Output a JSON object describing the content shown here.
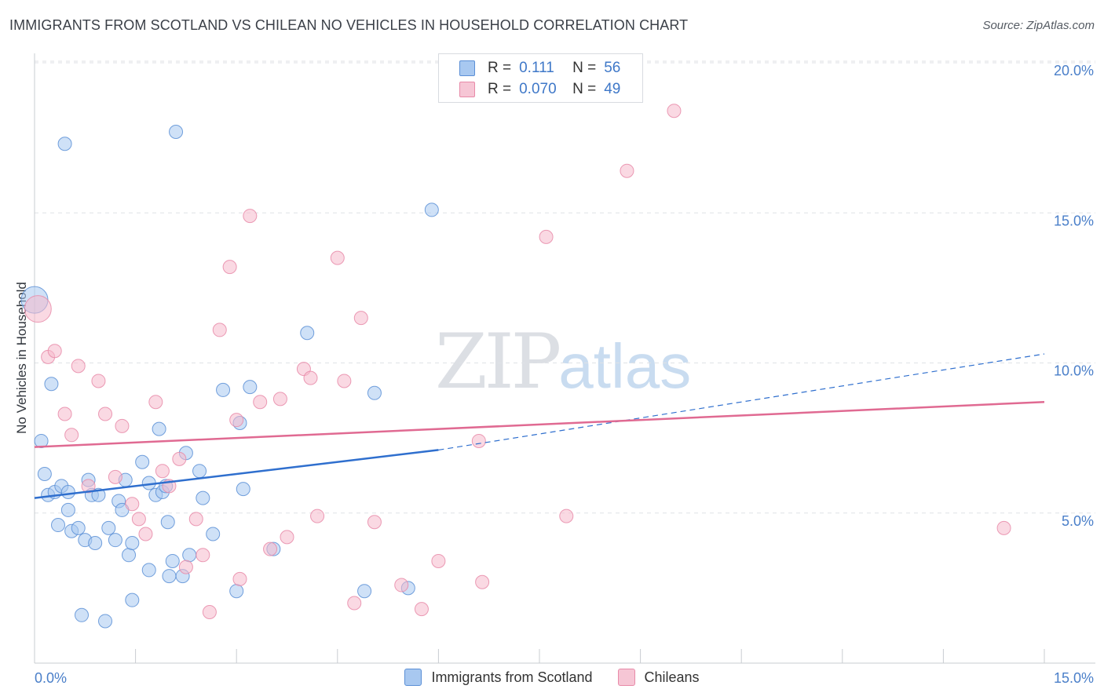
{
  "header": {
    "title": "IMMIGRANTS FROM SCOTLAND VS CHILEAN NO VEHICLES IN HOUSEHOLD CORRELATION CHART",
    "source": "Source: ZipAtlas.com"
  },
  "watermark": {
    "zip": "ZIP",
    "atlas": "atlas"
  },
  "legend": {
    "rows": [
      {
        "r_label": "R =",
        "r_value": "0.111",
        "n_label": "N =",
        "n_value": "56",
        "color": "#a8c8f0"
      },
      {
        "r_label": "R =",
        "r_value": "0.070",
        "n_label": "N =",
        "n_value": "49",
        "color": "#f6b9cc"
      }
    ]
  },
  "bottom_legend": [
    {
      "label": "Immigrants from Scotland",
      "color": "#a8c8f0"
    },
    {
      "label": "Chileans",
      "color": "#f6b9cc"
    }
  ],
  "chart_data": {
    "type": "scatter",
    "title": "IMMIGRANTS FROM SCOTLAND VS CHILEAN NO VEHICLES IN HOUSEHOLD CORRELATION CHART",
    "xlabel": "",
    "ylabel": "No Vehicles in Household",
    "xlim": [
      0,
      15
    ],
    "ylim": [
      0,
      20
    ],
    "x_tick_labels": [
      {
        "value": 0,
        "label": "0.0%"
      },
      {
        "value": 15,
        "label": "15.0%"
      }
    ],
    "y_tick_labels": [
      {
        "value": 5,
        "label": "5.0%"
      },
      {
        "value": 10,
        "label": "10.0%"
      },
      {
        "value": 15,
        "label": "15.0%"
      },
      {
        "value": 20,
        "label": "20.0%"
      }
    ],
    "grid": "horizontal-dashed",
    "legend_position": "top-center",
    "colors": {
      "scotland_fill": "#a8c8f0",
      "scotland_stroke": "#5b8fd6",
      "scotland_line": "#2f6fce",
      "chilean_fill": "#f6b9cc",
      "chilean_stroke": "#e88aa8",
      "chilean_line": "#e06a92"
    },
    "series": [
      {
        "name": "Immigrants from Scotland",
        "points": [
          {
            "x": 0.0,
            "y": 12.1,
            "big": true
          },
          {
            "x": 0.1,
            "y": 7.4
          },
          {
            "x": 0.15,
            "y": 6.3
          },
          {
            "x": 0.2,
            "y": 5.6
          },
          {
            "x": 0.25,
            "y": 9.3
          },
          {
            "x": 0.3,
            "y": 5.7
          },
          {
            "x": 0.35,
            "y": 4.6
          },
          {
            "x": 0.4,
            "y": 5.9
          },
          {
            "x": 0.45,
            "y": 17.3
          },
          {
            "x": 0.5,
            "y": 5.1
          },
          {
            "x": 0.5,
            "y": 5.7
          },
          {
            "x": 0.55,
            "y": 4.4
          },
          {
            "x": 0.65,
            "y": 4.5
          },
          {
            "x": 0.7,
            "y": 1.6
          },
          {
            "x": 0.75,
            "y": 4.1
          },
          {
            "x": 0.8,
            "y": 6.1
          },
          {
            "x": 0.85,
            "y": 5.6
          },
          {
            "x": 0.9,
            "y": 4.0
          },
          {
            "x": 0.95,
            "y": 5.6
          },
          {
            "x": 1.05,
            "y": 1.4
          },
          {
            "x": 1.1,
            "y": 4.5
          },
          {
            "x": 1.2,
            "y": 4.1
          },
          {
            "x": 1.25,
            "y": 5.4
          },
          {
            "x": 1.3,
            "y": 5.1
          },
          {
            "x": 1.35,
            "y": 6.1
          },
          {
            "x": 1.4,
            "y": 3.6
          },
          {
            "x": 1.45,
            "y": 2.1
          },
          {
            "x": 1.45,
            "y": 4.0
          },
          {
            "x": 1.6,
            "y": 6.7
          },
          {
            "x": 1.7,
            "y": 6.0
          },
          {
            "x": 1.7,
            "y": 3.1
          },
          {
            "x": 1.8,
            "y": 5.6
          },
          {
            "x": 1.85,
            "y": 7.8
          },
          {
            "x": 1.9,
            "y": 5.7
          },
          {
            "x": 1.95,
            "y": 5.9
          },
          {
            "x": 1.98,
            "y": 4.7
          },
          {
            "x": 2.0,
            "y": 2.9
          },
          {
            "x": 2.05,
            "y": 3.4
          },
          {
            "x": 2.1,
            "y": 17.7
          },
          {
            "x": 2.2,
            "y": 2.9
          },
          {
            "x": 2.25,
            "y": 7.0
          },
          {
            "x": 2.3,
            "y": 3.6
          },
          {
            "x": 2.45,
            "y": 6.4
          },
          {
            "x": 2.5,
            "y": 5.5
          },
          {
            "x": 2.65,
            "y": 4.3
          },
          {
            "x": 2.8,
            "y": 9.1
          },
          {
            "x": 3.0,
            "y": 2.4
          },
          {
            "x": 3.05,
            "y": 8.0
          },
          {
            "x": 3.1,
            "y": 5.8
          },
          {
            "x": 3.2,
            "y": 9.2
          },
          {
            "x": 3.55,
            "y": 3.8
          },
          {
            "x": 4.05,
            "y": 11.0
          },
          {
            "x": 4.9,
            "y": 2.4
          },
          {
            "x": 5.05,
            "y": 9.0
          },
          {
            "x": 5.55,
            "y": 2.5
          },
          {
            "x": 5.9,
            "y": 15.1
          }
        ],
        "trend": {
          "x0": 0,
          "y0": 5.5,
          "x1": 6.0,
          "y1": 7.1,
          "dashed_to_x": 15,
          "dashed_to_y": 10.3
        }
      },
      {
        "name": "Chileans",
        "points": [
          {
            "x": 0.05,
            "y": 11.8,
            "big": true
          },
          {
            "x": 0.2,
            "y": 10.2
          },
          {
            "x": 0.3,
            "y": 10.4
          },
          {
            "x": 0.45,
            "y": 8.3
          },
          {
            "x": 0.55,
            "y": 7.6
          },
          {
            "x": 0.65,
            "y": 9.9
          },
          {
            "x": 0.8,
            "y": 5.9
          },
          {
            "x": 0.95,
            "y": 9.4
          },
          {
            "x": 1.05,
            "y": 8.3
          },
          {
            "x": 1.2,
            "y": 6.2
          },
          {
            "x": 1.3,
            "y": 7.9
          },
          {
            "x": 1.45,
            "y": 5.3
          },
          {
            "x": 1.55,
            "y": 4.8
          },
          {
            "x": 1.65,
            "y": 4.3
          },
          {
            "x": 1.8,
            "y": 8.7
          },
          {
            "x": 1.9,
            "y": 6.4
          },
          {
            "x": 2.0,
            "y": 5.9
          },
          {
            "x": 2.15,
            "y": 6.8
          },
          {
            "x": 2.25,
            "y": 3.2
          },
          {
            "x": 2.4,
            "y": 4.8
          },
          {
            "x": 2.5,
            "y": 3.6
          },
          {
            "x": 2.6,
            "y": 1.7
          },
          {
            "x": 2.75,
            "y": 11.1
          },
          {
            "x": 2.9,
            "y": 13.2
          },
          {
            "x": 3.0,
            "y": 8.1
          },
          {
            "x": 3.05,
            "y": 2.8
          },
          {
            "x": 3.2,
            "y": 14.9
          },
          {
            "x": 3.35,
            "y": 8.7
          },
          {
            "x": 3.5,
            "y": 3.8
          },
          {
            "x": 3.65,
            "y": 8.8
          },
          {
            "x": 3.75,
            "y": 4.2
          },
          {
            "x": 4.0,
            "y": 9.8
          },
          {
            "x": 4.1,
            "y": 9.5
          },
          {
            "x": 4.2,
            "y": 4.9
          },
          {
            "x": 4.5,
            "y": 13.5
          },
          {
            "x": 4.6,
            "y": 9.4
          },
          {
            "x": 4.75,
            "y": 2.0
          },
          {
            "x": 4.85,
            "y": 11.5
          },
          {
            "x": 5.05,
            "y": 4.7
          },
          {
            "x": 5.45,
            "y": 2.6
          },
          {
            "x": 5.75,
            "y": 1.8
          },
          {
            "x": 6.0,
            "y": 3.4
          },
          {
            "x": 6.6,
            "y": 7.4
          },
          {
            "x": 6.65,
            "y": 2.7
          },
          {
            "x": 7.6,
            "y": 14.2
          },
          {
            "x": 7.9,
            "y": 4.9
          },
          {
            "x": 8.8,
            "y": 16.4
          },
          {
            "x": 9.5,
            "y": 18.4
          },
          {
            "x": 14.4,
            "y": 4.5
          }
        ],
        "trend": {
          "x0": 0,
          "y0": 7.2,
          "x1": 15,
          "y1": 8.7
        }
      }
    ]
  }
}
